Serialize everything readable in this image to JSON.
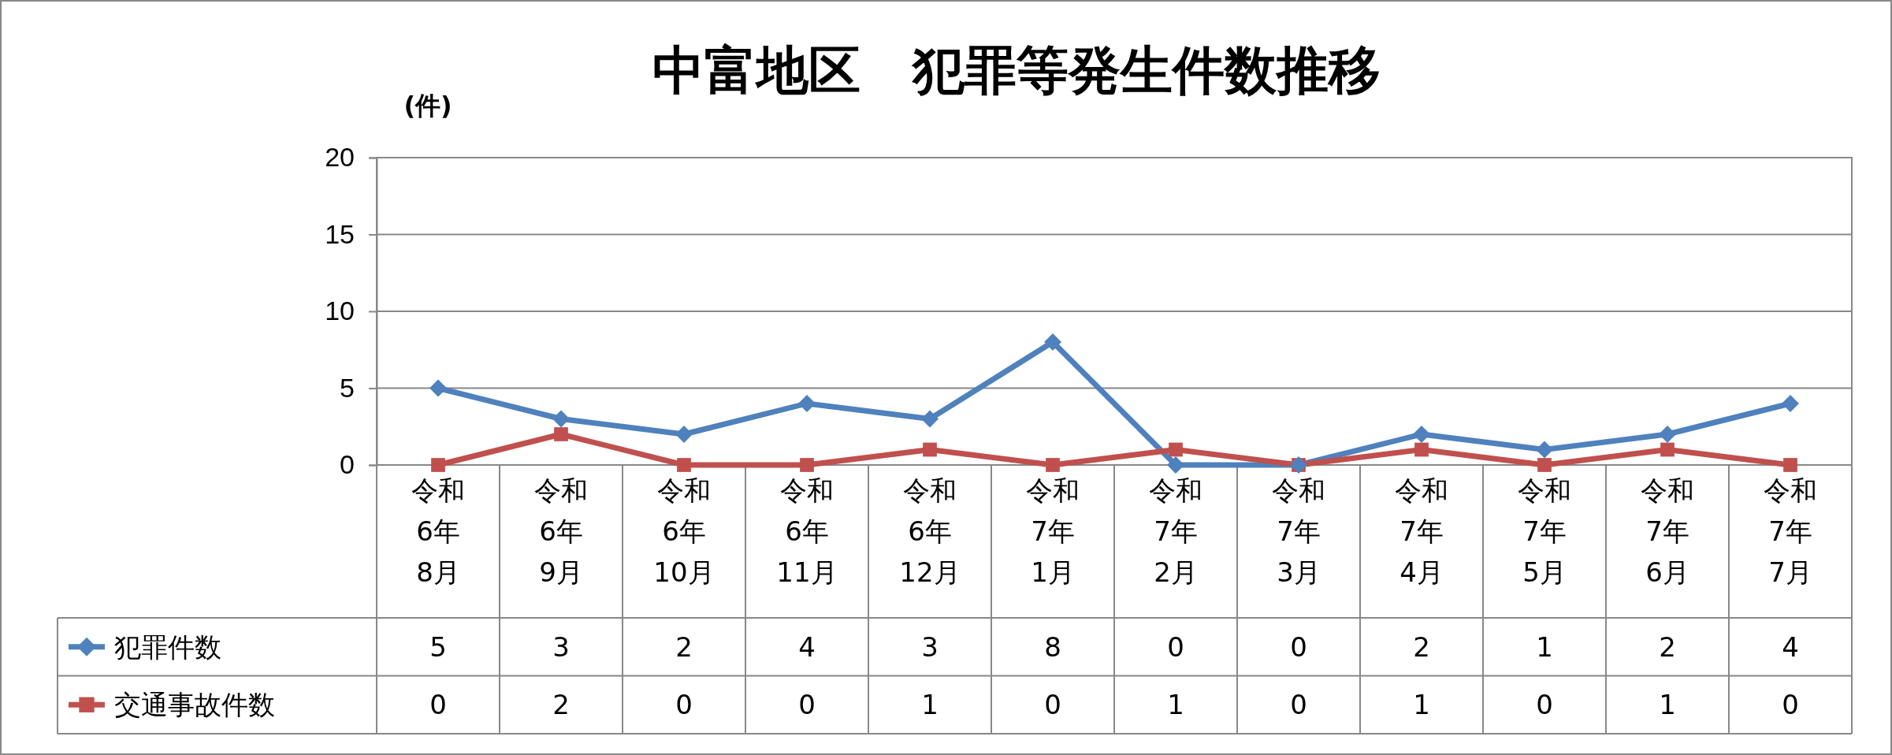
{
  "chart_data": {
    "type": "line",
    "title": "中富地区　犯罪等発生件数推移",
    "ylabel": "(件)",
    "categories": [
      "令和6年8月",
      "令和6年9月",
      "令和6年10月",
      "令和6年11月",
      "令和6年12月",
      "令和7年1月",
      "令和7年2月",
      "令和7年3月",
      "令和7年4月",
      "令和7年5月",
      "令和7年6月",
      "令和7年7月"
    ],
    "series": [
      {
        "name": "犯罪件数",
        "color": "#4f81bd",
        "marker": "diamond",
        "values": [
          5,
          3,
          2,
          4,
          3,
          8,
          0,
          0,
          2,
          1,
          2,
          4
        ]
      },
      {
        "name": "交通事故件数",
        "color": "#c0504d",
        "marker": "square",
        "values": [
          0,
          2,
          0,
          0,
          1,
          0,
          1,
          0,
          1,
          0,
          1,
          0
        ]
      }
    ],
    "ylim": [
      0,
      20
    ],
    "yticks": [
      0,
      5,
      10,
      15,
      20
    ],
    "grid": "y",
    "legend": "bottom left",
    "data_labels": true,
    "line_style": "solid"
  }
}
